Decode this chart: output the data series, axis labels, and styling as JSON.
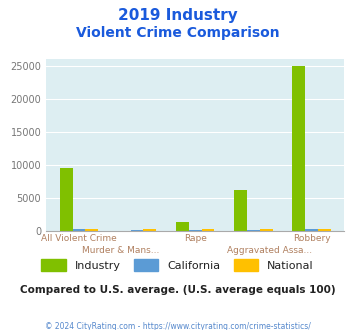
{
  "title_line1": "2019 Industry",
  "title_line2": "Violent Crime Comparison",
  "categories_row1": [
    "All Violent Crime",
    "",
    "Rape",
    "",
    "Robbery"
  ],
  "categories_row2": [
    "",
    "Murder & Mans...",
    "",
    "Aggravated Assa...",
    ""
  ],
  "industry": [
    9500,
    0,
    1300,
    6200,
    25000
  ],
  "california": [
    300,
    200,
    200,
    200,
    300
  ],
  "national": [
    350,
    250,
    250,
    250,
    350
  ],
  "industry_color": "#80c000",
  "california_color": "#5b9bd5",
  "national_color": "#ffc000",
  "bg_color": "#ddeef2",
  "title_color": "#1a5adc",
  "xlabel_color1": "#b08060",
  "xlabel_color2": "#b08060",
  "ylim": [
    0,
    26000
  ],
  "yticks": [
    0,
    5000,
    10000,
    15000,
    20000,
    25000
  ],
  "subtitle_text": "Compared to U.S. average. (U.S. average equals 100)",
  "footer_text": "© 2024 CityRating.com - https://www.cityrating.com/crime-statistics/",
  "legend_labels": [
    "Industry",
    "California",
    "National"
  ]
}
